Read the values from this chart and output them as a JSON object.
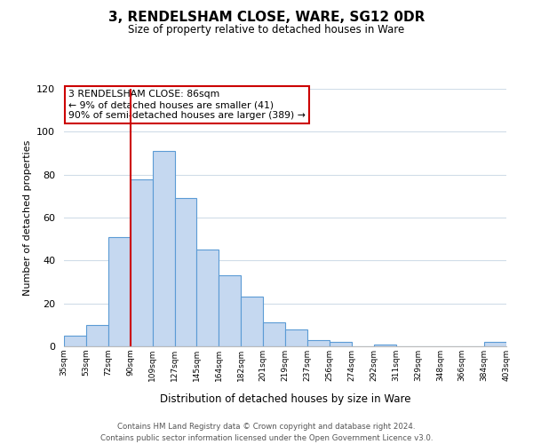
{
  "title": "3, RENDELSHAM CLOSE, WARE, SG12 0DR",
  "subtitle": "Size of property relative to detached houses in Ware",
  "xlabel": "Distribution of detached houses by size in Ware",
  "ylabel": "Number of detached properties",
  "bin_labels": [
    "35sqm",
    "53sqm",
    "72sqm",
    "90sqm",
    "109sqm",
    "127sqm",
    "145sqm",
    "164sqm",
    "182sqm",
    "201sqm",
    "219sqm",
    "237sqm",
    "256sqm",
    "274sqm",
    "292sqm",
    "311sqm",
    "329sqm",
    "348sqm",
    "366sqm",
    "384sqm",
    "403sqm"
  ],
  "bar_heights": [
    5,
    10,
    51,
    78,
    91,
    69,
    45,
    33,
    23,
    11,
    8,
    3,
    2,
    0,
    1,
    0,
    0,
    0,
    0,
    2
  ],
  "bar_color": "#c5d8f0",
  "bar_edge_color": "#5b9bd5",
  "vline_x": 3,
  "vline_color": "#cc0000",
  "ylim": [
    0,
    120
  ],
  "yticks": [
    0,
    20,
    40,
    60,
    80,
    100,
    120
  ],
  "annotation_text": "3 RENDELSHAM CLOSE: 86sqm\n← 9% of detached houses are smaller (41)\n90% of semi-detached houses are larger (389) →",
  "annotation_box_color": "#ffffff",
  "annotation_box_edge": "#cc0000",
  "footer_line1": "Contains HM Land Registry data © Crown copyright and database right 2024.",
  "footer_line2": "Contains public sector information licensed under the Open Government Licence v3.0.",
  "background_color": "#ffffff",
  "grid_color": "#d0dce8"
}
